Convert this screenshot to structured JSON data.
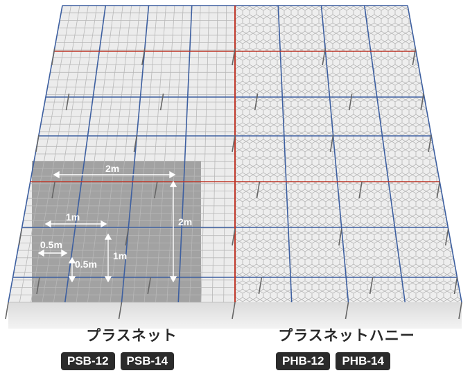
{
  "dimensions": {
    "top_width": "2m",
    "right_height": "2m",
    "one_m": "1m",
    "half_m_h": "0.5m",
    "half_m_v": "0.5m",
    "one_m_v": "1m"
  },
  "products": [
    {
      "name": "プラスネット",
      "codes": [
        "PSB-12",
        "PSB-14"
      ]
    },
    {
      "name": "プラスネットハニー",
      "codes": [
        "PHB-12",
        "PHB-14"
      ]
    }
  ],
  "colors": {
    "red_line": "#c0392b",
    "blue_line": "#3d5fa0",
    "grid": "#b8b8b8",
    "highlight": "#8a8a8a"
  }
}
